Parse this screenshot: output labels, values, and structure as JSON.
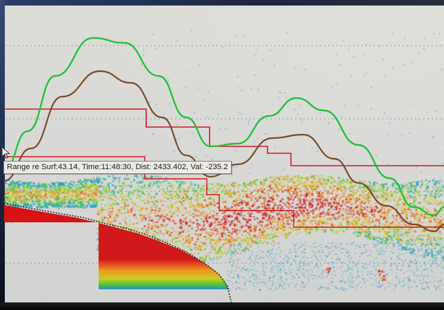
{
  "window": {
    "type": "echogram-display"
  },
  "readout": {
    "text": "Range re Surf:43.14, Time:11:48:30, Dist: 2433.402, Val: -235.2"
  },
  "colors": {
    "background": "#d8d9d6",
    "grid": "#8a8a8a",
    "motion_green": "#22c23a",
    "motion_brown": "#7a4a26",
    "analysis_box": "#d4141a",
    "seabed": "#d61215",
    "echo_scale": [
      "#2a8fd0",
      "#2fb3b0",
      "#4ec43a",
      "#c6cf26",
      "#ee9a22",
      "#e0561e",
      "#d1181a"
    ]
  },
  "icons": {
    "cursor": "mouse-pointer-icon"
  }
}
